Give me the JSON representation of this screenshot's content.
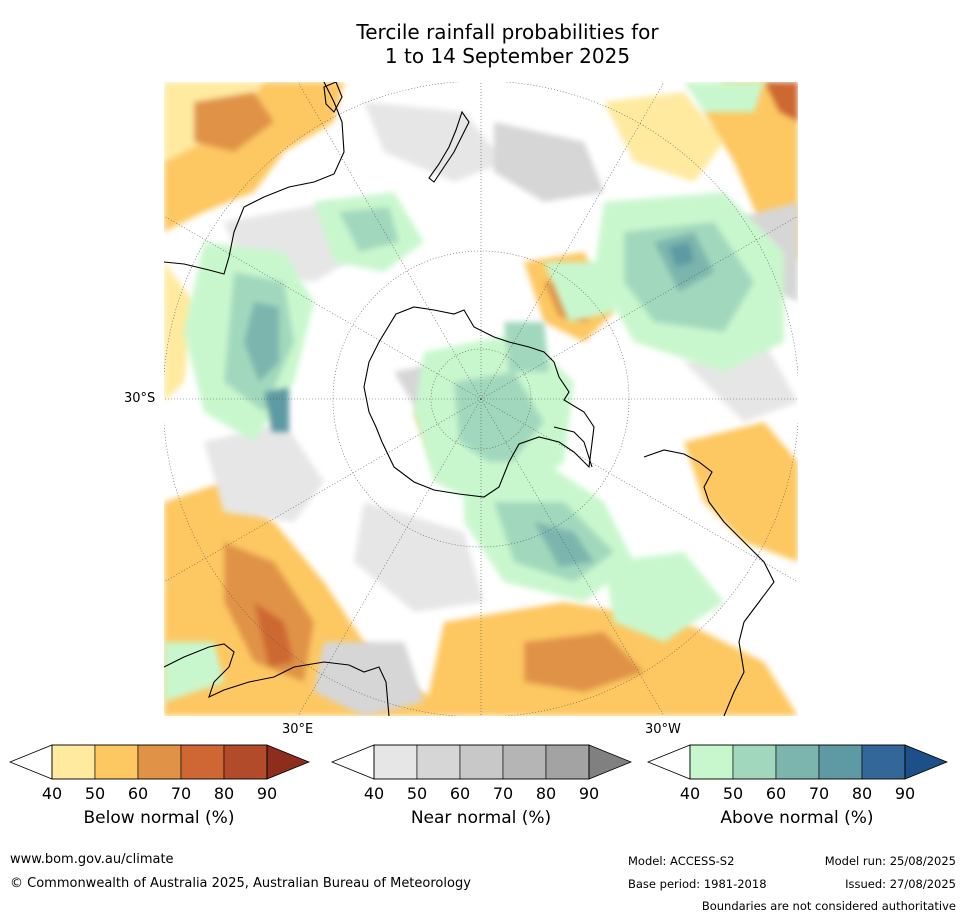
{
  "title_line1": "Tercile rainfall probabilities for",
  "title_line2": "1 to 14 September 2025",
  "map": {
    "lat_label": "30°S",
    "lon_label_east": "30°E",
    "lon_label_west": "30°W"
  },
  "legend": {
    "ticks": [
      "40",
      "50",
      "60",
      "70",
      "80",
      "90"
    ],
    "below": {
      "title": "Below normal (%)",
      "colors": [
        "#ffeaa0",
        "#fdc862",
        "#e09346",
        "#ce6733",
        "#b14b29",
        "#8c2d1e"
      ]
    },
    "near": {
      "title": "Near normal (%)",
      "colors": [
        "#e6e6e6",
        "#d6d6d6",
        "#c8c8c8",
        "#b5b5b5",
        "#a3a3a3",
        "#808080"
      ]
    },
    "above": {
      "title": "Above normal (%)",
      "colors": [
        "#c9f7cd",
        "#a1d8bd",
        "#7cb5ad",
        "#5d9aa3",
        "#336699",
        "#1d4f88"
      ]
    }
  },
  "footer": {
    "website": "www.bom.gov.au/climate",
    "copyright": "© Commonwealth of Australia 2025, Australian Bureau of Meteorology",
    "model": "Model: ACCESS-S2",
    "model_run": "Model run: 25/08/2025",
    "base_period": "Base period: 1981-2018",
    "issued": "Issued: 27/08/2025",
    "disclaimer": "Boundaries are not considered authoritative"
  }
}
